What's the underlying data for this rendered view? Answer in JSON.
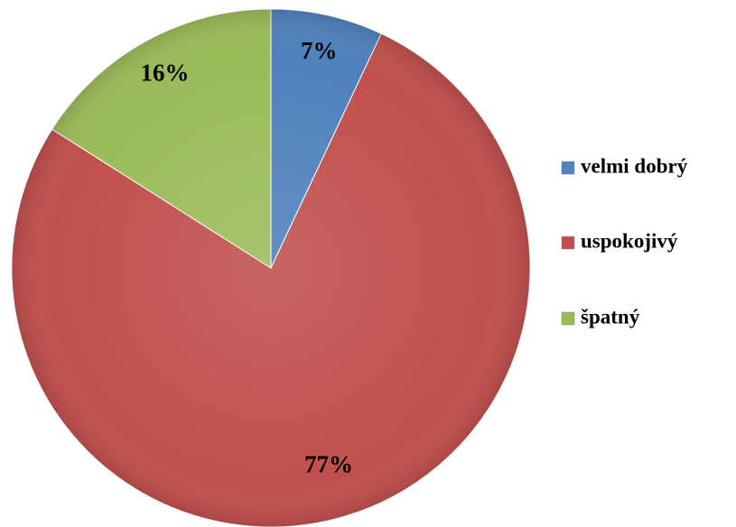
{
  "chart_data": {
    "type": "pie",
    "categories": [
      "velmi dobrý",
      "uspokojivý",
      "špatný"
    ],
    "values": [
      7,
      77,
      16
    ],
    "value_labels": [
      "7%",
      "77%",
      "16%"
    ],
    "colors": [
      "#4f81bd",
      "#c0504d",
      "#9bbb59"
    ],
    "legend": "right"
  }
}
